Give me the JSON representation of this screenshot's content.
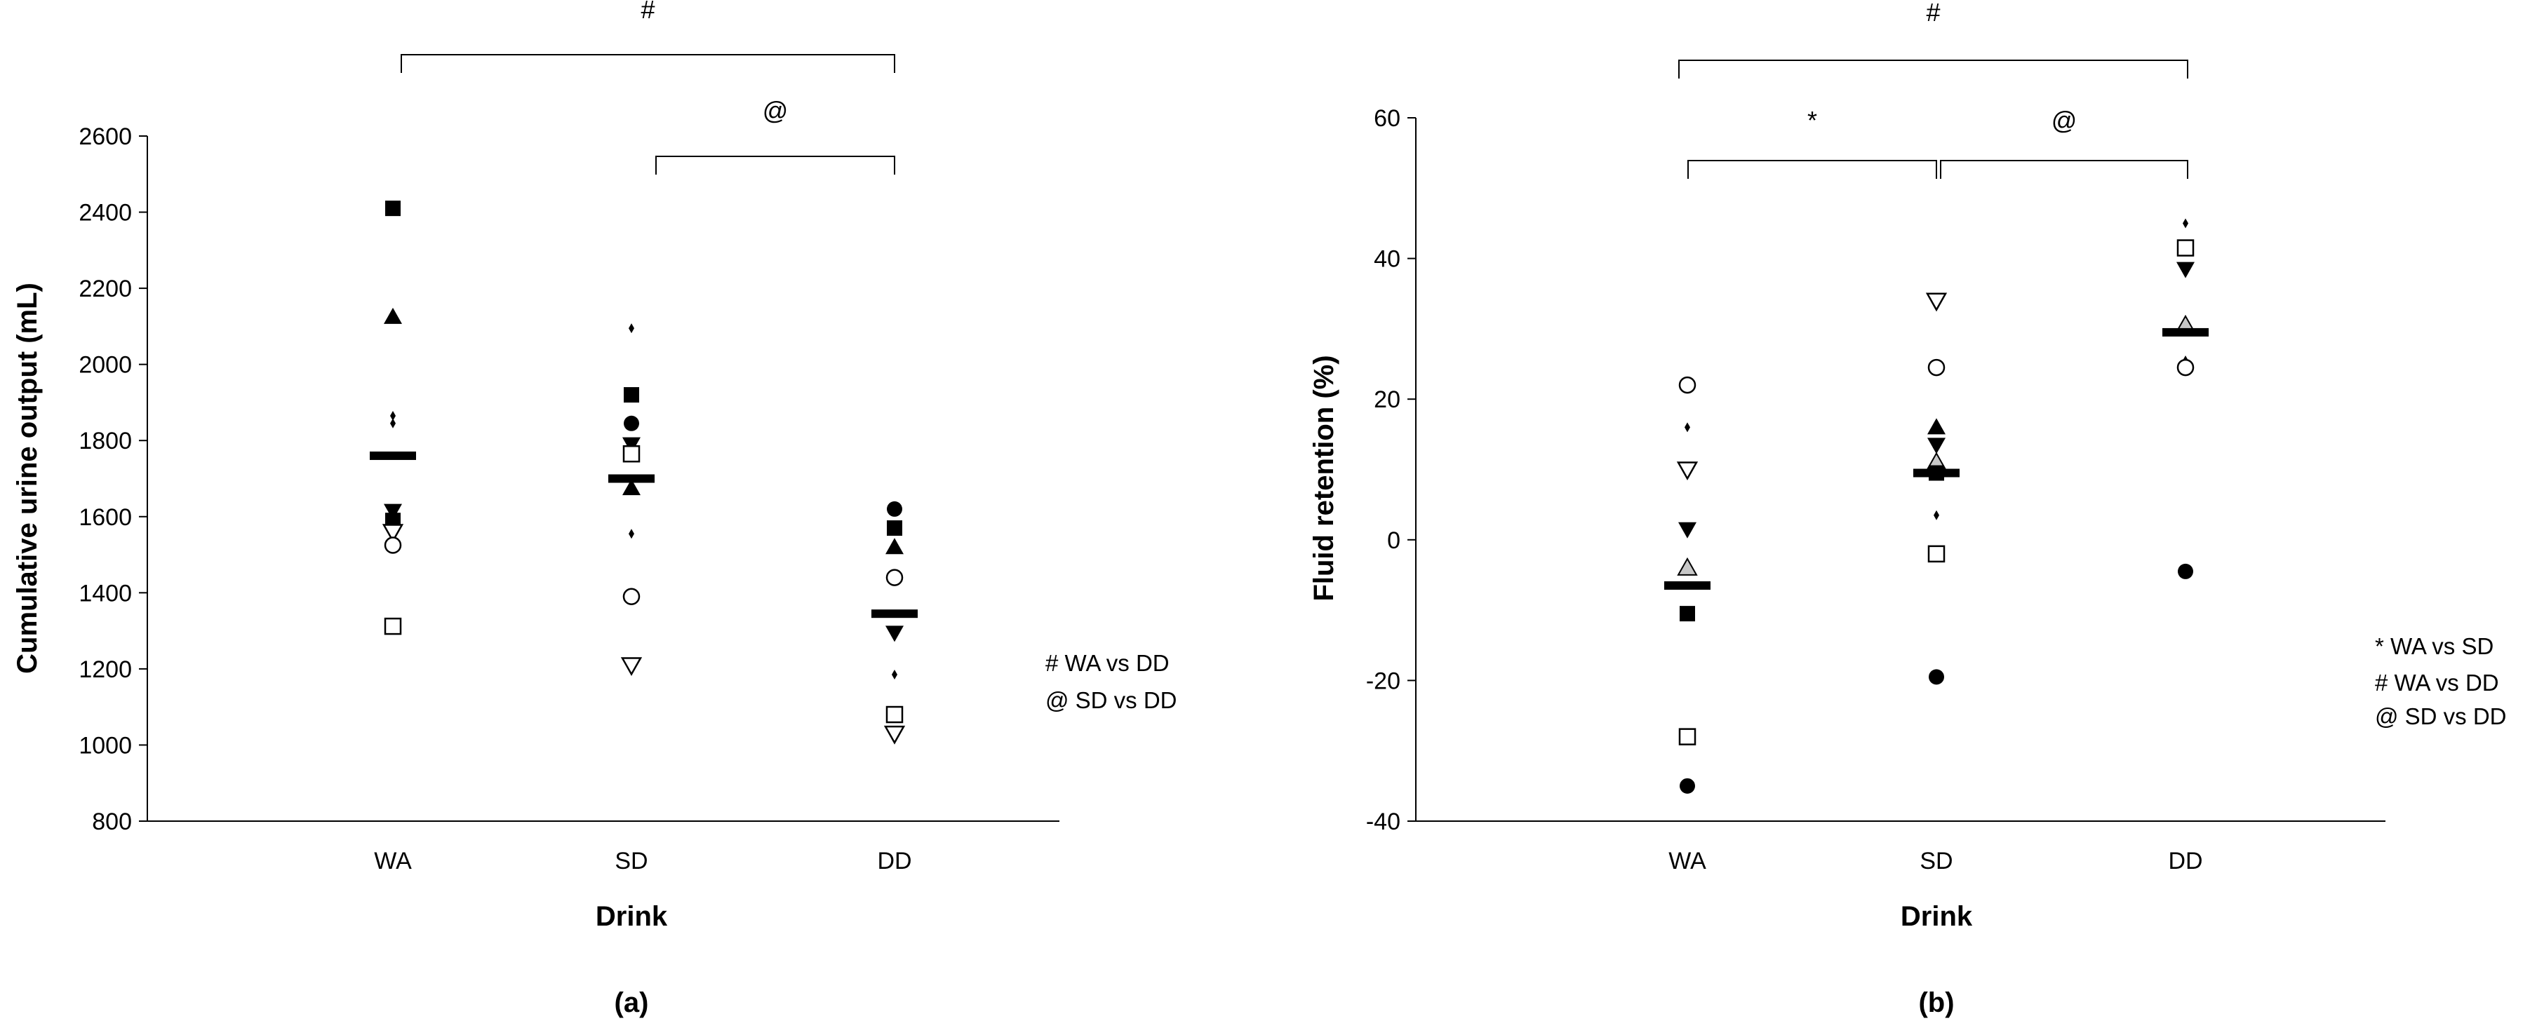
{
  "figure": {
    "panels": [
      "(a)",
      "(b)"
    ]
  },
  "chart_data": [
    {
      "type": "scatter",
      "panel_label": "(a)",
      "xlabel": "Drink",
      "ylabel": "Cumulative urine output (mL)",
      "categories": [
        "WA",
        "SD",
        "DD"
      ],
      "ylim": [
        800,
        2600
      ],
      "yticks": [
        800,
        1000,
        1200,
        1400,
        1600,
        1800,
        2000,
        2200,
        2400,
        2600
      ],
      "grid": false,
      "means": [
        1760,
        1700,
        1345
      ],
      "points": [
        {
          "cat": "WA",
          "y": 2410,
          "marker": "square-filled"
        },
        {
          "cat": "WA",
          "y": 2125,
          "marker": "triangle-filled"
        },
        {
          "cat": "WA",
          "y": 1865,
          "marker": "diamond-small"
        },
        {
          "cat": "WA",
          "y": 1845,
          "marker": "diamond-small"
        },
        {
          "cat": "WA",
          "y": 1615,
          "marker": "triangle-down-filled"
        },
        {
          "cat": "WA",
          "y": 1590,
          "marker": "square-filled"
        },
        {
          "cat": "WA",
          "y": 1560,
          "marker": "triangle-down-open"
        },
        {
          "cat": "WA",
          "y": 1525,
          "marker": "circle-open"
        },
        {
          "cat": "WA",
          "y": 1312,
          "marker": "square-open"
        },
        {
          "cat": "SD",
          "y": 2095,
          "marker": "diamond-small"
        },
        {
          "cat": "SD",
          "y": 1920,
          "marker": "square-filled"
        },
        {
          "cat": "SD",
          "y": 1845,
          "marker": "circle-filled"
        },
        {
          "cat": "SD",
          "y": 1790,
          "marker": "triangle-down-filled"
        },
        {
          "cat": "SD",
          "y": 1765,
          "marker": "square-open"
        },
        {
          "cat": "SD",
          "y": 1675,
          "marker": "triangle-filled"
        },
        {
          "cat": "SD",
          "y": 1555,
          "marker": "diamond-small"
        },
        {
          "cat": "SD",
          "y": 1390,
          "marker": "circle-open"
        },
        {
          "cat": "SD",
          "y": 1210,
          "marker": "triangle-down-open"
        },
        {
          "cat": "DD",
          "y": 1620,
          "marker": "circle-filled"
        },
        {
          "cat": "DD",
          "y": 1570,
          "marker": "square-filled"
        },
        {
          "cat": "DD",
          "y": 1520,
          "marker": "triangle-filled"
        },
        {
          "cat": "DD",
          "y": 1440,
          "marker": "circle-open"
        },
        {
          "cat": "DD",
          "y": 1295,
          "marker": "triangle-down-filled"
        },
        {
          "cat": "DD",
          "y": 1185,
          "marker": "diamond-small"
        },
        {
          "cat": "DD",
          "y": 1080,
          "marker": "square-open"
        },
        {
          "cat": "DD",
          "y": 1030,
          "marker": "triangle-down-open"
        }
      ],
      "comparisons": [
        {
          "symbol": "#",
          "from": "WA",
          "to": "DD"
        },
        {
          "symbol": "@",
          "from": "SD",
          "to": "DD"
        }
      ],
      "legend": [
        "#  WA vs DD",
        "@ SD vs DD"
      ]
    },
    {
      "type": "scatter",
      "panel_label": "(b)",
      "xlabel": "Drink",
      "ylabel": "Fluid retention (%)",
      "categories": [
        "WA",
        "SD",
        "DD"
      ],
      "ylim": [
        -40,
        60
      ],
      "yticks": [
        -40,
        -20,
        0,
        20,
        40,
        60
      ],
      "grid": false,
      "means": [
        -6.5,
        9.5,
        29.5
      ],
      "points": [
        {
          "cat": "WA",
          "y": 22,
          "marker": "circle-open"
        },
        {
          "cat": "WA",
          "y": 16,
          "marker": "diamond-small"
        },
        {
          "cat": "WA",
          "y": 10,
          "marker": "triangle-down-open"
        },
        {
          "cat": "WA",
          "y": 1.5,
          "marker": "triangle-down-filled"
        },
        {
          "cat": "WA",
          "y": -4,
          "marker": "triangle-gray"
        },
        {
          "cat": "WA",
          "y": -10.5,
          "marker": "square-filled"
        },
        {
          "cat": "WA",
          "y": -28,
          "marker": "square-open"
        },
        {
          "cat": "WA",
          "y": -35,
          "marker": "circle-filled"
        },
        {
          "cat": "SD",
          "y": 34,
          "marker": "triangle-down-open"
        },
        {
          "cat": "SD",
          "y": 24.5,
          "marker": "circle-open"
        },
        {
          "cat": "SD",
          "y": 16,
          "marker": "triangle-filled"
        },
        {
          "cat": "SD",
          "y": 13.5,
          "marker": "triangle-down-filled"
        },
        {
          "cat": "SD",
          "y": 11,
          "marker": "triangle-gray"
        },
        {
          "cat": "SD",
          "y": 9.5,
          "marker": "square-filled"
        },
        {
          "cat": "SD",
          "y": 3.5,
          "marker": "diamond-small"
        },
        {
          "cat": "SD",
          "y": -2,
          "marker": "square-open"
        },
        {
          "cat": "SD",
          "y": -19.5,
          "marker": "circle-filled"
        },
        {
          "cat": "DD",
          "y": 45,
          "marker": "diamond-small"
        },
        {
          "cat": "DD",
          "y": 41.5,
          "marker": "square-open"
        },
        {
          "cat": "DD",
          "y": 38.5,
          "marker": "triangle-down-filled"
        },
        {
          "cat": "DD",
          "y": 30.5,
          "marker": "triangle-gray"
        },
        {
          "cat": "DD",
          "y": 25.5,
          "marker": "diamond-small"
        },
        {
          "cat": "DD",
          "y": 24.5,
          "marker": "circle-open"
        },
        {
          "cat": "DD",
          "y": -4.5,
          "marker": "circle-filled"
        }
      ],
      "comparisons": [
        {
          "symbol": "#",
          "from": "WA",
          "to": "DD"
        },
        {
          "symbol": "*",
          "from": "WA",
          "to": "SD"
        },
        {
          "symbol": "@",
          "from": "SD",
          "to": "DD"
        }
      ],
      "legend": [
        "* WA vs SD",
        "#  WA vs DD",
        "@ SD vs DD"
      ]
    }
  ]
}
